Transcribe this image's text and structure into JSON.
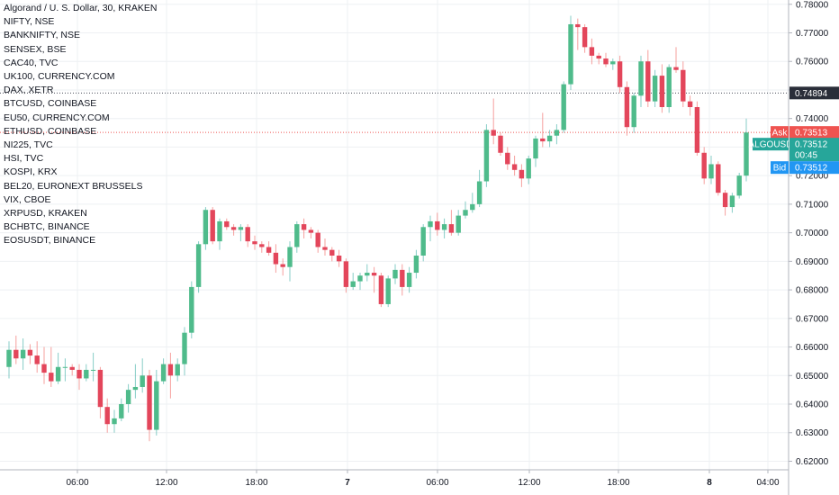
{
  "overlays": [
    "Algorand / U. S. Dollar, 30, KRAKEN",
    "NIFTY, NSE",
    "BANKNIFTY, NSE",
    "SENSEX, BSE",
    "CAC40, TVC",
    "UK100, CURRENCY.COM",
    "DAX, XETR",
    "BTCUSD, COINBASE",
    "EU50, CURRENCY.COM",
    "ETHUSD, COINBASE",
    "NI225, TVC",
    "HSI, TVC",
    "KOSPI, KRX",
    "BEL20, EURONEXT BRUSSELS",
    "VIX, CBOE",
    "XRPUSD, KRAKEN",
    "BCHBTC, BINANCE",
    "EOSUSDT, BINANCE"
  ],
  "colors": {
    "up": "#26a69a",
    "up_body": "#4fbb8b",
    "down": "#ef5350",
    "down_body": "#e3465b",
    "grid": "#eef0f3",
    "text": "#131722",
    "tag_dark": "#2a2e39",
    "tag_green": "#26a69a",
    "tag_red": "#ef5350",
    "tag_blue": "#2196f3"
  },
  "price_tags": {
    "level": "0.74894",
    "ask_label": "Ask",
    "ask_value": "0.73513",
    "symbol": "ALGOUSD",
    "last_value": "0.73512",
    "countdown": "00:45",
    "bid_label": "Bid",
    "bid_value": "0.73512"
  },
  "chart_data": {
    "type": "candlestick",
    "symbol": "Algorand / U. S. Dollar",
    "interval": "30",
    "exchange": "KRAKEN",
    "y_axis_ticks": [
      "0.78000",
      "0.77000",
      "0.76000",
      "0.75000",
      "0.74000",
      "0.73000",
      "0.72000",
      "0.71000",
      "0.70000",
      "0.69000",
      "0.68000",
      "0.67000",
      "0.66000",
      "0.65000",
      "0.64000",
      "0.63000",
      "0.62000"
    ],
    "x_axis_ticks": [
      "06:00",
      "12:00",
      "18:00",
      "7",
      "06:00",
      "12:00",
      "18:00",
      "8",
      "04:00"
    ],
    "ylim": [
      0.617,
      0.7815
    ],
    "horizontal_levels": [
      0.74894,
      0.73513
    ],
    "grid": true,
    "ohlc": [
      [
        0.653,
        0.662,
        0.649,
        0.659
      ],
      [
        0.659,
        0.664,
        0.654,
        0.656
      ],
      [
        0.656,
        0.663,
        0.652,
        0.659
      ],
      [
        0.659,
        0.661,
        0.654,
        0.657
      ],
      [
        0.657,
        0.662,
        0.651,
        0.654
      ],
      [
        0.654,
        0.66,
        0.647,
        0.651
      ],
      [
        0.651,
        0.66,
        0.646,
        0.648
      ],
      [
        0.648,
        0.658,
        0.647,
        0.653
      ],
      [
        0.653,
        0.656,
        0.648,
        0.653
      ],
      [
        0.653,
        0.654,
        0.65,
        0.652
      ],
      [
        0.652,
        0.654,
        0.645,
        0.649
      ],
      [
        0.649,
        0.654,
        0.648,
        0.652
      ],
      [
        0.652,
        0.658,
        0.648,
        0.652
      ],
      [
        0.652,
        0.653,
        0.635,
        0.639
      ],
      [
        0.639,
        0.642,
        0.63,
        0.633
      ],
      [
        0.633,
        0.638,
        0.63,
        0.635
      ],
      [
        0.635,
        0.642,
        0.634,
        0.64
      ],
      [
        0.64,
        0.647,
        0.637,
        0.645
      ],
      [
        0.645,
        0.654,
        0.642,
        0.646
      ],
      [
        0.646,
        0.656,
        0.644,
        0.65
      ],
      [
        0.65,
        0.652,
        0.627,
        0.631
      ],
      [
        0.631,
        0.652,
        0.629,
        0.648
      ],
      [
        0.648,
        0.656,
        0.647,
        0.654
      ],
      [
        0.654,
        0.658,
        0.642,
        0.65
      ],
      [
        0.65,
        0.656,
        0.648,
        0.654
      ],
      [
        0.654,
        0.667,
        0.65,
        0.665
      ],
      [
        0.665,
        0.683,
        0.663,
        0.681
      ],
      [
        0.681,
        0.697,
        0.679,
        0.696
      ],
      [
        0.696,
        0.709,
        0.694,
        0.708
      ],
      [
        0.708,
        0.709,
        0.696,
        0.697
      ],
      [
        0.697,
        0.705,
        0.694,
        0.704
      ],
      [
        0.704,
        0.705,
        0.701,
        0.702
      ],
      [
        0.702,
        0.703,
        0.699,
        0.701
      ],
      [
        0.701,
        0.703,
        0.697,
        0.702
      ],
      [
        0.702,
        0.703,
        0.695,
        0.697
      ],
      [
        0.697,
        0.699,
        0.694,
        0.696
      ],
      [
        0.696,
        0.697,
        0.693,
        0.695
      ],
      [
        0.695,
        0.697,
        0.692,
        0.693
      ],
      [
        0.693,
        0.696,
        0.686,
        0.689
      ],
      [
        0.689,
        0.691,
        0.685,
        0.688
      ],
      [
        0.688,
        0.697,
        0.683,
        0.695
      ],
      [
        0.695,
        0.704,
        0.693,
        0.703
      ],
      [
        0.703,
        0.705,
        0.698,
        0.701
      ],
      [
        0.701,
        0.702,
        0.698,
        0.7
      ],
      [
        0.7,
        0.701,
        0.693,
        0.695
      ],
      [
        0.695,
        0.698,
        0.692,
        0.694
      ],
      [
        0.694,
        0.695,
        0.69,
        0.692
      ],
      [
        0.692,
        0.694,
        0.688,
        0.69
      ],
      [
        0.69,
        0.691,
        0.679,
        0.681
      ],
      [
        0.681,
        0.686,
        0.68,
        0.683
      ],
      [
        0.683,
        0.686,
        0.68,
        0.685
      ],
      [
        0.685,
        0.689,
        0.683,
        0.686
      ],
      [
        0.686,
        0.688,
        0.679,
        0.685
      ],
      [
        0.685,
        0.686,
        0.674,
        0.675
      ],
      [
        0.675,
        0.685,
        0.674,
        0.684
      ],
      [
        0.684,
        0.689,
        0.682,
        0.687
      ],
      [
        0.687,
        0.689,
        0.678,
        0.681
      ],
      [
        0.681,
        0.688,
        0.679,
        0.686
      ],
      [
        0.686,
        0.694,
        0.684,
        0.692
      ],
      [
        0.692,
        0.703,
        0.69,
        0.702
      ],
      [
        0.702,
        0.706,
        0.697,
        0.704
      ],
      [
        0.704,
        0.707,
        0.699,
        0.701
      ],
      [
        0.701,
        0.705,
        0.698,
        0.703
      ],
      [
        0.703,
        0.708,
        0.699,
        0.7
      ],
      [
        0.7,
        0.708,
        0.699,
        0.706
      ],
      [
        0.706,
        0.711,
        0.705,
        0.708
      ],
      [
        0.708,
        0.714,
        0.707,
        0.71
      ],
      [
        0.71,
        0.722,
        0.709,
        0.718
      ],
      [
        0.718,
        0.738,
        0.716,
        0.736
      ],
      [
        0.736,
        0.747,
        0.731,
        0.734
      ],
      [
        0.734,
        0.735,
        0.727,
        0.728
      ],
      [
        0.728,
        0.73,
        0.722,
        0.724
      ],
      [
        0.724,
        0.727,
        0.72,
        0.722
      ],
      [
        0.722,
        0.724,
        0.716,
        0.719
      ],
      [
        0.719,
        0.727,
        0.717,
        0.726
      ],
      [
        0.726,
        0.734,
        0.723,
        0.733
      ],
      [
        0.733,
        0.742,
        0.73,
        0.732
      ],
      [
        0.732,
        0.736,
        0.73,
        0.734
      ],
      [
        0.734,
        0.738,
        0.731,
        0.736
      ],
      [
        0.736,
        0.753,
        0.735,
        0.752
      ],
      [
        0.752,
        0.776,
        0.75,
        0.773
      ],
      [
        0.773,
        0.775,
        0.764,
        0.772
      ],
      [
        0.772,
        0.773,
        0.763,
        0.765
      ],
      [
        0.765,
        0.768,
        0.759,
        0.762
      ],
      [
        0.762,
        0.763,
        0.759,
        0.761
      ],
      [
        0.761,
        0.763,
        0.758,
        0.759
      ],
      [
        0.759,
        0.761,
        0.757,
        0.76
      ],
      [
        0.76,
        0.762,
        0.749,
        0.751
      ],
      [
        0.751,
        0.753,
        0.734,
        0.737
      ],
      [
        0.737,
        0.749,
        0.735,
        0.748
      ],
      [
        0.748,
        0.762,
        0.744,
        0.76
      ],
      [
        0.76,
        0.764,
        0.744,
        0.746
      ],
      [
        0.746,
        0.757,
        0.744,
        0.755
      ],
      [
        0.755,
        0.759,
        0.742,
        0.744
      ],
      [
        0.744,
        0.759,
        0.742,
        0.758
      ],
      [
        0.758,
        0.765,
        0.756,
        0.757
      ],
      [
        0.757,
        0.76,
        0.744,
        0.746
      ],
      [
        0.746,
        0.748,
        0.741,
        0.744
      ],
      [
        0.744,
        0.746,
        0.727,
        0.728
      ],
      [
        0.728,
        0.73,
        0.717,
        0.719
      ],
      [
        0.719,
        0.727,
        0.717,
        0.724
      ],
      [
        0.724,
        0.725,
        0.713,
        0.714
      ],
      [
        0.714,
        0.715,
        0.706,
        0.709
      ],
      [
        0.709,
        0.714,
        0.707,
        0.713
      ],
      [
        0.713,
        0.721,
        0.712,
        0.72
      ],
      [
        0.72,
        0.74,
        0.718,
        0.7351
      ]
    ]
  }
}
